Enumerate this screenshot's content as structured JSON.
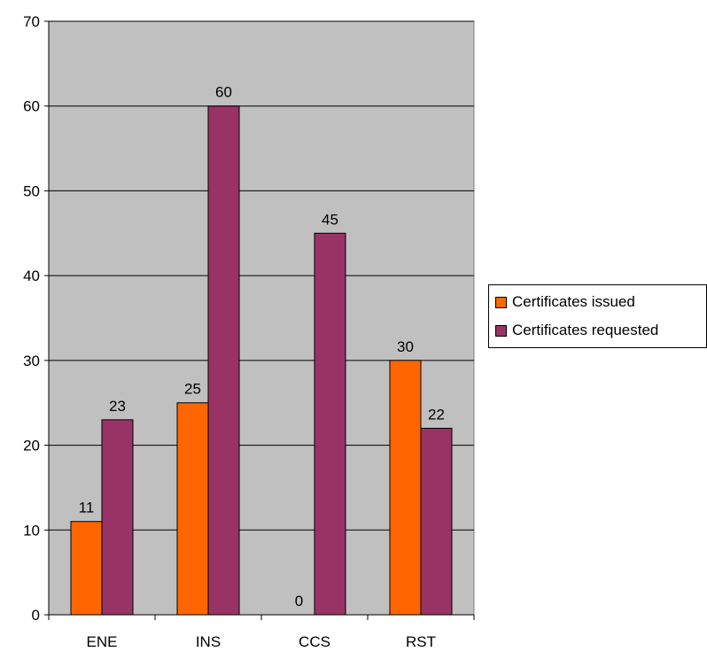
{
  "chart_data": {
    "type": "bar",
    "categories": [
      "ENE",
      "INS",
      "CCS",
      "RST"
    ],
    "series": [
      {
        "name": "Certificates issued",
        "values": [
          11,
          25,
          0,
          30
        ],
        "color": "#FF6600"
      },
      {
        "name": "Certificates requested",
        "values": [
          23,
          60,
          45,
          22
        ],
        "color": "#993366"
      }
    ],
    "ylim": [
      0,
      70
    ],
    "yticks": [
      0,
      10,
      20,
      30,
      40,
      50,
      60,
      70
    ],
    "grid": true,
    "plot_background": "#C0C0C0",
    "legend_position": "right",
    "title": "",
    "xlabel": "",
    "ylabel": ""
  }
}
